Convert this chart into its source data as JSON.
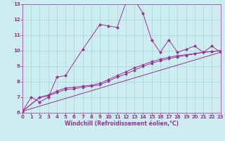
{
  "bg_color": "#cceef0",
  "grid_color": "#aad4d8",
  "line_color": "#993399",
  "xlabel": "Windchill (Refroidissement éolien,°C)",
  "xlim": [
    0,
    23
  ],
  "ylim": [
    6,
    13
  ],
  "yticks": [
    6,
    7,
    8,
    9,
    10,
    11,
    12,
    13
  ],
  "xticks": [
    0,
    1,
    2,
    3,
    4,
    5,
    6,
    7,
    8,
    9,
    10,
    11,
    12,
    13,
    14,
    15,
    16,
    17,
    18,
    19,
    20,
    21,
    22,
    23
  ],
  "series1_x": [
    0,
    1,
    2,
    3,
    4,
    5,
    7,
    9,
    10,
    11,
    12,
    13,
    14,
    15,
    16,
    17,
    18,
    19,
    20,
    21,
    22,
    23
  ],
  "series1_y": [
    6.1,
    7.0,
    6.7,
    7.0,
    8.3,
    8.4,
    10.1,
    11.7,
    11.6,
    11.5,
    13.1,
    13.3,
    12.4,
    10.7,
    9.9,
    10.7,
    9.9,
    10.1,
    10.3,
    9.9,
    10.3,
    9.9
  ],
  "series2_x": [
    0,
    2,
    3,
    4,
    5,
    6,
    7,
    8,
    9,
    10,
    11,
    12,
    13,
    14,
    15,
    16,
    17,
    18,
    19,
    20,
    21,
    22,
    23
  ],
  "series2_y": [
    6.1,
    7.0,
    7.1,
    7.3,
    7.5,
    7.55,
    7.65,
    7.72,
    7.8,
    8.05,
    8.3,
    8.5,
    8.75,
    9.0,
    9.2,
    9.35,
    9.5,
    9.6,
    9.7,
    9.8,
    9.9,
    9.95,
    10.0
  ],
  "series3_x": [
    0,
    2,
    3,
    4,
    5,
    6,
    7,
    8,
    9,
    10,
    11,
    12,
    13,
    14,
    15,
    16,
    17,
    18,
    19,
    20,
    21,
    22,
    23
  ],
  "series3_y": [
    6.1,
    7.0,
    7.15,
    7.4,
    7.6,
    7.65,
    7.72,
    7.78,
    7.9,
    8.15,
    8.4,
    8.65,
    8.9,
    9.1,
    9.3,
    9.45,
    9.58,
    9.68,
    9.75,
    9.82,
    9.9,
    9.95,
    10.0
  ],
  "series4_x": [
    0,
    23
  ],
  "series4_y": [
    6.1,
    9.9
  ],
  "tick_fontsize": 5,
  "xlabel_fontsize": 5.5
}
